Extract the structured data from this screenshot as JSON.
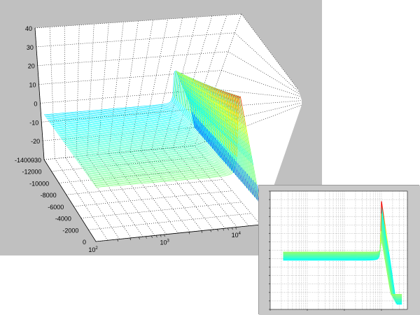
{
  "chart_data": [
    {
      "type": "surface",
      "view": "3d-perspective",
      "colormap": "jet",
      "grid": true,
      "x_axis": {
        "scale": "log",
        "range": [
          100,
          20000
        ],
        "tick_labels": [
          {
            "base": "10",
            "exp": "2"
          },
          {
            "base": "10",
            "exp": "3"
          },
          {
            "base": "10",
            "exp": "4"
          }
        ]
      },
      "y_axis": {
        "scale": "linear",
        "range": [
          0,
          -14000
        ],
        "tick_labels": [
          "0",
          "-2000",
          "-4000",
          "-6000",
          "-8000",
          "-10000",
          "-12000",
          "-14000"
        ]
      },
      "z_axis": {
        "scale": "linear",
        "range": [
          -30,
          40
        ],
        "tick_labels": [
          "-30",
          "-20",
          "-10",
          "0",
          "10",
          "20",
          "30",
          "40"
        ]
      },
      "surface": {
        "plateau_z": -6,
        "peak_frequency": 10000,
        "peak_z": 34,
        "rolloff_floor_z": -30
      }
    },
    {
      "type": "surface",
      "view": "2d-side",
      "colormap": "jet",
      "grid": true,
      "x_axis": {
        "scale": "log",
        "range": [
          10,
          50000
        ]
      },
      "z_axis": {
        "scale": "linear",
        "range": [
          -30,
          40
        ]
      },
      "y_axis": {
        "scale": "linear",
        "range": [
          0,
          -14000
        ]
      },
      "surface": {
        "band_z": [
          -1,
          4
        ],
        "peak_frequency": 10000,
        "peak_z": 34,
        "rolloff_floor_z": -27
      }
    }
  ]
}
